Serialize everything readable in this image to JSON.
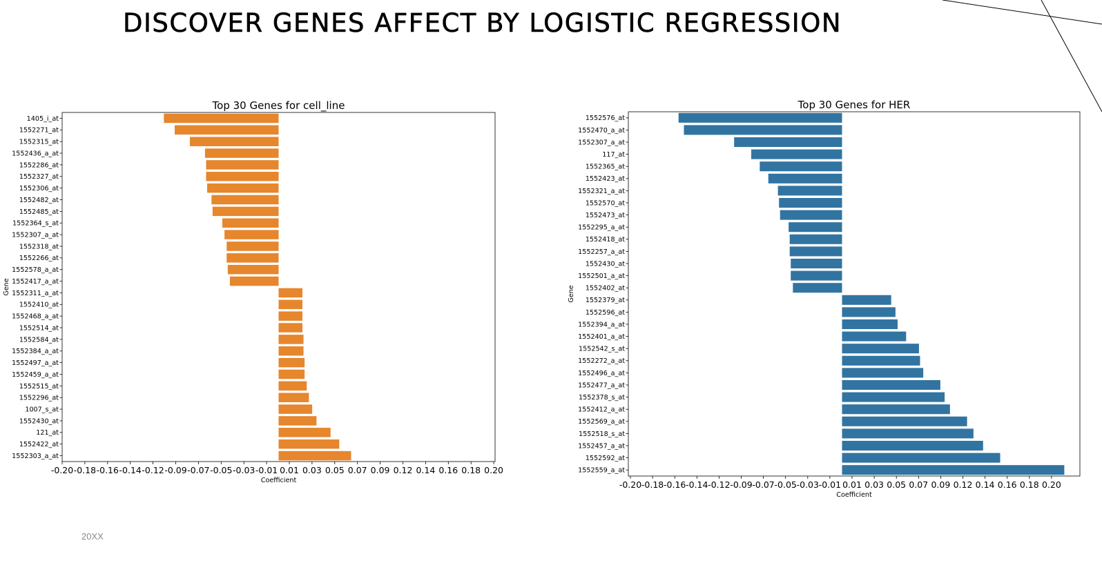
{
  "slide": {
    "title": "DISCOVER GENES AFFECT BY LOGISTIC REGRESSION",
    "footer": "20XX"
  },
  "colors": {
    "cell_line_bar": "#e6862d",
    "her_bar": "#3274a1",
    "decorative_line": "#000000"
  },
  "chart_data": [
    {
      "type": "bar",
      "orientation": "horizontal",
      "title": "Top 30 Genes for cell_line",
      "xlabel": "Coefficient",
      "ylabel": "Gene",
      "xlim": [
        -0.2,
        0.2
      ],
      "xtick_labels": [
        "-0.20",
        "-0.18",
        "-0.16",
        "-0.14",
        "-0.12",
        "-0.09",
        "-0.07",
        "-0.05",
        "-0.03",
        "-0.01",
        "0.01",
        "0.03",
        "0.05",
        "0.07",
        "0.09",
        "0.12",
        "0.14",
        "0.16",
        "0.18",
        "0.20"
      ],
      "categories": [
        "1405_i_at",
        "1552271_at",
        "1552315_at",
        "1552436_a_at",
        "1552286_at",
        "1552327_at",
        "1552306_at",
        "1552482_at",
        "1552485_at",
        "1552364_s_at",
        "1552307_a_at",
        "1552318_at",
        "1552266_at",
        "1552578_a_at",
        "1552417_a_at",
        "1552311_a_at",
        "1552410_at",
        "1552468_a_at",
        "1552514_at",
        "1552584_at",
        "1552384_a_at",
        "1552497_a_at",
        "1552459_a_at",
        "1552515_at",
        "1552296_at",
        "1007_s_at",
        "1552430_at",
        "121_at",
        "1552422_at",
        "1552303_a_at"
      ],
      "values": [
        -0.106,
        -0.096,
        -0.082,
        -0.068,
        -0.067,
        -0.067,
        -0.066,
        -0.062,
        -0.061,
        -0.052,
        -0.05,
        -0.048,
        -0.048,
        -0.047,
        -0.045,
        0.022,
        0.022,
        0.022,
        0.022,
        0.023,
        0.023,
        0.024,
        0.024,
        0.026,
        0.028,
        0.031,
        0.035,
        0.048,
        0.056,
        0.067
      ]
    },
    {
      "type": "bar",
      "orientation": "horizontal",
      "title": "Top 30 Genes for HER",
      "xlabel": "Coefficient",
      "ylabel": "Gene",
      "xlim": [
        -0.2,
        0.22
      ],
      "xtick_labels": [
        "-0.20",
        "-0.18",
        "-0.16",
        "-0.14",
        "-0.12",
        "-0.09",
        "-0.07",
        "-0.05",
        "-0.03",
        "-0.01",
        "0.01",
        "0.03",
        "0.05",
        "0.07",
        "0.09",
        "0.12",
        "0.14",
        "0.16",
        "0.18",
        "0.20"
      ],
      "categories": [
        "1552576_at",
        "1552470_a_at",
        "1552307_a_at",
        "117_at",
        "1552365_at",
        "1552423_at",
        "1552321_a_at",
        "1552570_at",
        "1552473_at",
        "1552295_a_at",
        "1552418_at",
        "1552257_a_at",
        "1552430_at",
        "1552501_a_at",
        "1552402_at",
        "1552379_at",
        "1552596_at",
        "1552394_a_at",
        "1552401_a_at",
        "1552542_s_at",
        "1552272_a_at",
        "1552496_a_at",
        "1552477_a_at",
        "1552378_s_at",
        "1552412_a_at",
        "1552569_a_at",
        "1552518_s_at",
        "1552457_a_at",
        "1552592_at",
        "1552559_a_at"
      ],
      "values": [
        -0.153,
        -0.148,
        -0.101,
        -0.085,
        -0.077,
        -0.069,
        -0.06,
        -0.059,
        -0.058,
        -0.05,
        -0.049,
        -0.049,
        -0.048,
        -0.048,
        -0.046,
        0.046,
        0.05,
        0.052,
        0.06,
        0.072,
        0.073,
        0.076,
        0.092,
        0.096,
        0.101,
        0.117,
        0.123,
        0.132,
        0.148,
        0.208
      ]
    }
  ]
}
